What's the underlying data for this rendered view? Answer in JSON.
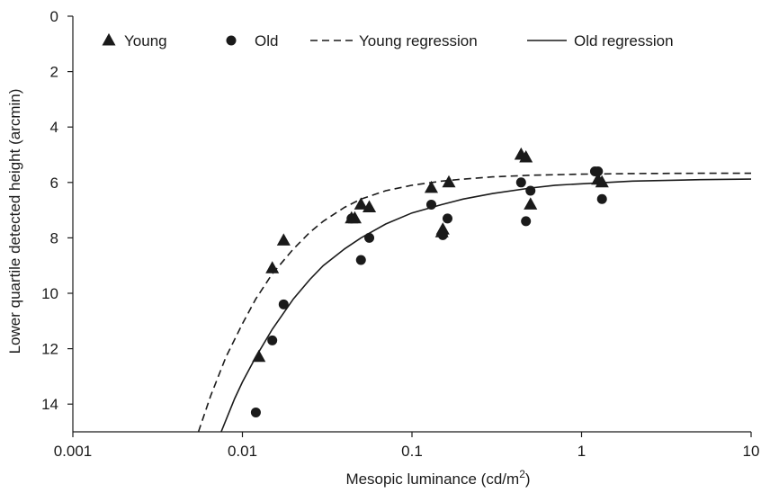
{
  "chart_data": {
    "type": "scatter",
    "xlabel": "Mesopic luminance (cd/m",
    "xlabel_sup": "2",
    "xlabel_end": ")",
    "ylabel": "Lower quartile detected height (arcmin)",
    "x_scale": "log",
    "xlim": [
      0.001,
      10
    ],
    "ylim": [
      0,
      15
    ],
    "y_inverted": true,
    "x_ticks": [
      0.001,
      0.01,
      0.1,
      1,
      10
    ],
    "x_tick_labels": [
      "0.001",
      "0.01",
      "0.1",
      "1",
      "10"
    ],
    "y_ticks": [
      0,
      2,
      4,
      6,
      8,
      10,
      12,
      14
    ],
    "y_tick_labels": [
      "0",
      "2",
      "4",
      "6",
      "8",
      "10",
      "12",
      "14"
    ],
    "grid": false,
    "legend_position": "top",
    "series": [
      {
        "name": "Young",
        "kind": "points",
        "marker": "triangle",
        "color": "#1a1a1a",
        "x": [
          0.0125,
          0.015,
          0.0175,
          0.044,
          0.046,
          0.05,
          0.056,
          0.13,
          0.15,
          0.152,
          0.165,
          0.44,
          0.47,
          0.5,
          1.25,
          1.32
        ],
        "y": [
          12.3,
          9.1,
          8.1,
          7.3,
          7.3,
          6.8,
          6.9,
          6.2,
          7.8,
          7.7,
          6.0,
          5.0,
          5.1,
          6.8,
          5.9,
          6.0
        ]
      },
      {
        "name": "Old",
        "kind": "points",
        "marker": "circle",
        "color": "#1a1a1a",
        "x": [
          0.012,
          0.015,
          0.0175,
          0.044,
          0.05,
          0.056,
          0.13,
          0.152,
          0.162,
          0.44,
          0.47,
          0.5,
          1.2,
          1.25,
          1.32
        ],
        "y": [
          14.3,
          11.7,
          10.4,
          7.3,
          8.8,
          8.0,
          6.8,
          7.9,
          7.3,
          6.0,
          7.4,
          6.3,
          5.6,
          5.6,
          6.6
        ]
      },
      {
        "name": "Young regression",
        "kind": "line",
        "dash": "dashed",
        "color": "#1a1a1a",
        "x": [
          0.0055,
          0.0065,
          0.008,
          0.01,
          0.012,
          0.015,
          0.02,
          0.025,
          0.03,
          0.04,
          0.05,
          0.07,
          0.1,
          0.15,
          0.2,
          0.3,
          0.5,
          0.7,
          1,
          2,
          5,
          10
        ],
        "y": [
          15.0,
          13.7,
          12.3,
          11.1,
          10.2,
          9.3,
          8.4,
          7.8,
          7.4,
          6.9,
          6.6,
          6.3,
          6.1,
          5.95,
          5.88,
          5.8,
          5.74,
          5.72,
          5.7,
          5.68,
          5.67,
          5.67
        ]
      },
      {
        "name": "Old regression",
        "kind": "line",
        "dash": "solid",
        "color": "#1a1a1a",
        "x": [
          0.0075,
          0.009,
          0.01,
          0.012,
          0.015,
          0.02,
          0.025,
          0.03,
          0.04,
          0.05,
          0.07,
          0.1,
          0.15,
          0.2,
          0.3,
          0.5,
          0.7,
          1,
          2,
          5,
          10
        ],
        "y": [
          15.0,
          13.8,
          13.2,
          12.3,
          11.3,
          10.2,
          9.5,
          9.0,
          8.4,
          8.0,
          7.5,
          7.1,
          6.8,
          6.6,
          6.4,
          6.2,
          6.1,
          6.05,
          5.95,
          5.9,
          5.88
        ]
      }
    ]
  }
}
